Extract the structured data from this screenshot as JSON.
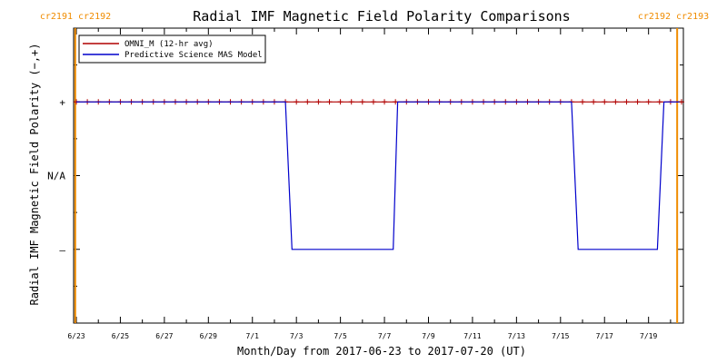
{
  "chart_data": {
    "type": "line",
    "title": "Radial IMF Magnetic Field Polarity Comparisons",
    "xlabel": "Month/Day from 2017-06-23 to 2017-07-20 (UT)",
    "ylabel": "Radial IMF Magnetic Field Polarity (−,+)",
    "x_unit": "days",
    "xlim": [
      0,
      27.5
    ],
    "ylim": [
      -2,
      2
    ],
    "x_tick_values": [
      0,
      2,
      4,
      6,
      8,
      10,
      12,
      14,
      16,
      18,
      20,
      22,
      24,
      26
    ],
    "x_tick_labels": [
      "6/23",
      "6/25",
      "6/27",
      "6/29",
      "7/1",
      "7/3",
      "7/5",
      "7/7",
      "7/9",
      "7/11",
      "7/13",
      "7/15",
      "7/17",
      "7/19"
    ],
    "y_ticks": [
      {
        "value": 1,
        "label": "+"
      },
      {
        "value": 0,
        "label": "N/A"
      },
      {
        "value": -1,
        "label": "–"
      }
    ],
    "carrington_markers": [
      {
        "x": -0.05,
        "label": "cr2191 cr2192"
      },
      {
        "x": 27.3,
        "label": "cr2192 cr2193"
      }
    ],
    "legend_position": "top-left",
    "series": [
      {
        "name": "OMNI_M (12-hr avg)",
        "color": "#b00000",
        "markers": true,
        "x": [
          0,
          0.5,
          1,
          1.5,
          2,
          2.5,
          3,
          3.5,
          4,
          4.5,
          5,
          5.5,
          6,
          6.5,
          7,
          7.5,
          8,
          8.5,
          9,
          9.5,
          10,
          10.5,
          11,
          11.5,
          12,
          12.5,
          13,
          13.5,
          14,
          14.5,
          15,
          15.5,
          16,
          16.5,
          17,
          17.5,
          18,
          18.5,
          19,
          19.5,
          20,
          20.5,
          21,
          21.5,
          22,
          22.5,
          23,
          23.5,
          24,
          24.5,
          25,
          25.5,
          26,
          26.5,
          27,
          27.5
        ],
        "y": [
          1,
          1,
          1,
          1,
          1,
          1,
          1,
          1,
          1,
          1,
          1,
          1,
          1,
          1,
          1,
          1,
          1,
          1,
          1,
          1,
          1,
          1,
          1,
          1,
          1,
          1,
          1,
          1,
          1,
          1,
          1,
          1,
          1,
          1,
          1,
          1,
          1,
          1,
          1,
          1,
          1,
          1,
          1,
          1,
          1,
          1,
          1,
          1,
          1,
          1,
          1,
          1,
          1,
          1,
          1,
          1
        ]
      },
      {
        "name": "Predictive Science MAS Model",
        "color": "#0000cc",
        "markers": false,
        "x": [
          0,
          9.5,
          9.8,
          14.4,
          14.6,
          22.5,
          22.8,
          26.4,
          26.7,
          27.4
        ],
        "y": [
          1,
          1,
          -1,
          -1,
          1,
          1,
          -1,
          -1,
          1,
          1
        ]
      }
    ]
  }
}
